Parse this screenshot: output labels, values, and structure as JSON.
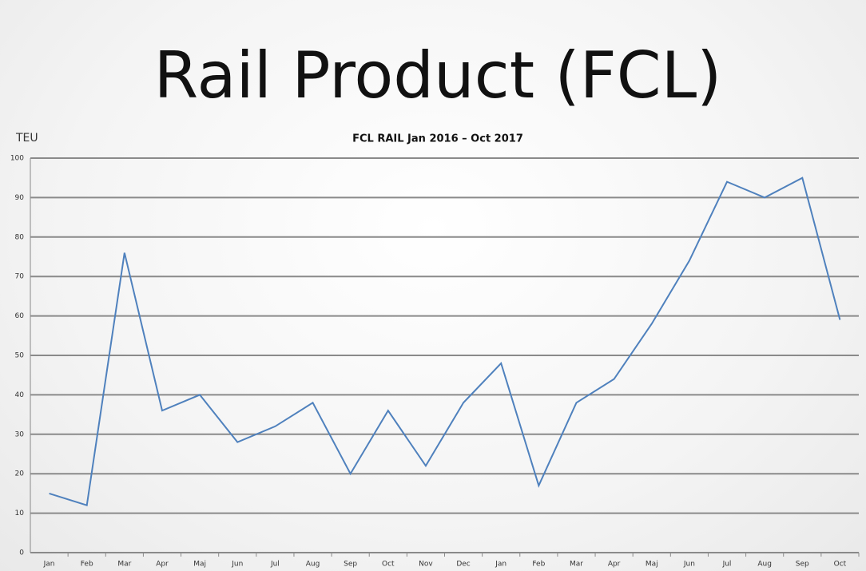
{
  "page_title": "Rail Product (FCL)",
  "chart_data": {
    "type": "line",
    "title": "FCL RAIL Jan 2016 – Oct 2017",
    "y_label": "TEU",
    "categories": [
      "Jan",
      "Feb",
      "Mar",
      "Apr",
      "Maj",
      "Jun",
      "Jul",
      "Aug",
      "Sep",
      "Oct",
      "Nov",
      "Dec",
      "Jan",
      "Feb",
      "Mar",
      "Apr",
      "Maj",
      "Jun",
      "Jul",
      "Aug",
      "Sep",
      "Oct"
    ],
    "series": [
      {
        "name": "FCL RAIL",
        "color": "#4f81bd",
        "values": [
          15,
          12,
          76,
          36,
          40,
          28,
          32,
          38,
          20,
          36,
          22,
          38,
          48,
          17,
          38,
          44,
          58,
          74,
          94,
          90,
          95,
          59
        ]
      }
    ],
    "ylim": [
      0,
      100
    ],
    "yticks": [
      0,
      10,
      20,
      30,
      40,
      50,
      60,
      70,
      80,
      90,
      100
    ],
    "grid": true
  }
}
